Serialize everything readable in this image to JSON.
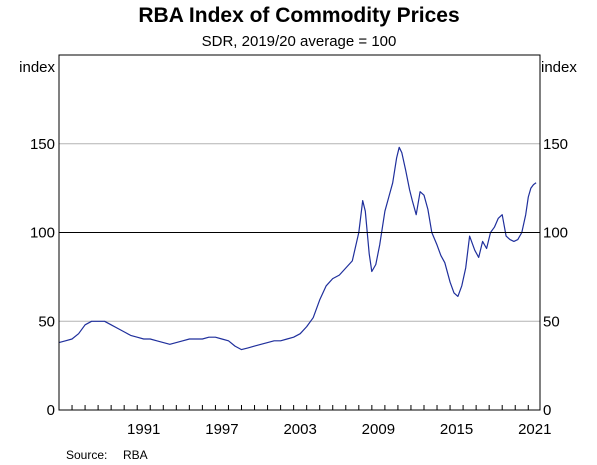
{
  "chart_data": {
    "type": "line",
    "title": "RBA Index of Commodity Prices",
    "subtitle": "SDR, 2019/20 average = 100",
    "ylabel_left": "index",
    "ylabel_right": "index",
    "ylim": [
      0,
      200
    ],
    "yticks": [
      0,
      50,
      100,
      150
    ],
    "xlim": [
      1985.0,
      2021.9
    ],
    "xticks": [
      1991,
      1997,
      2003,
      2009,
      2015,
      2021
    ],
    "grid": "horizontal",
    "reference_line": 100,
    "line_color": "#1f2f9c",
    "series": [
      {
        "x": [
          1985.0,
          1985.5,
          1986.0,
          1986.5,
          1987.0,
          1987.5,
          1988.0,
          1988.5,
          1989.0,
          1989.5,
          1990.0,
          1990.5,
          1991.0,
          1991.5,
          1992.0,
          1992.5,
          1993.0,
          1993.5,
          1994.0,
          1994.5,
          1995.0,
          1995.5,
          1996.0,
          1996.5,
          1997.0,
          1997.5,
          1998.0,
          1998.5,
          1999.0,
          1999.5,
          2000.0,
          2000.5,
          2001.0,
          2001.5,
          2002.0,
          2002.5,
          2003.0,
          2003.5,
          2004.0,
          2004.5,
          2005.0,
          2005.5,
          2006.0,
          2006.5,
          2007.0,
          2007.5,
          2008.0,
          2008.3,
          2008.5,
          2008.8,
          2009.0,
          2009.3,
          2009.6,
          2010.0,
          2010.3,
          2010.6,
          2010.9,
          2011.1,
          2011.3,
          2011.6,
          2011.9,
          2012.1,
          2012.4,
          2012.7,
          2013.0,
          2013.3,
          2013.6,
          2014.0,
          2014.3,
          2014.6,
          2015.0,
          2015.3,
          2015.6,
          2015.9,
          2016.2,
          2016.5,
          2016.9,
          2017.2,
          2017.5,
          2017.8,
          2018.1,
          2018.4,
          2018.7,
          2019.0,
          2019.3,
          2019.6,
          2019.9,
          2020.2,
          2020.5,
          2020.8,
          2021.0,
          2021.2,
          2021.4,
          2021.6
        ],
        "values": [
          38,
          39,
          40,
          43,
          48,
          50,
          50,
          50,
          48,
          46,
          44,
          42,
          41,
          40,
          40,
          39,
          38,
          37,
          38,
          39,
          40,
          40,
          40,
          41,
          41,
          40,
          39,
          36,
          34,
          35,
          36,
          37,
          38,
          39,
          39,
          40,
          41,
          43,
          47,
          52,
          62,
          70,
          74,
          76,
          80,
          84,
          100,
          118,
          112,
          88,
          78,
          82,
          93,
          112,
          120,
          128,
          142,
          148,
          145,
          135,
          124,
          118,
          110,
          123,
          121,
          113,
          100,
          93,
          87,
          83,
          72,
          66,
          64,
          70,
          80,
          98,
          90,
          86,
          95,
          91,
          100,
          103,
          108,
          110,
          98,
          96,
          95,
          96,
          100,
          110,
          120,
          125,
          127,
          128
        ]
      }
    ]
  },
  "source": {
    "label": "Source:",
    "value": "RBA"
  }
}
